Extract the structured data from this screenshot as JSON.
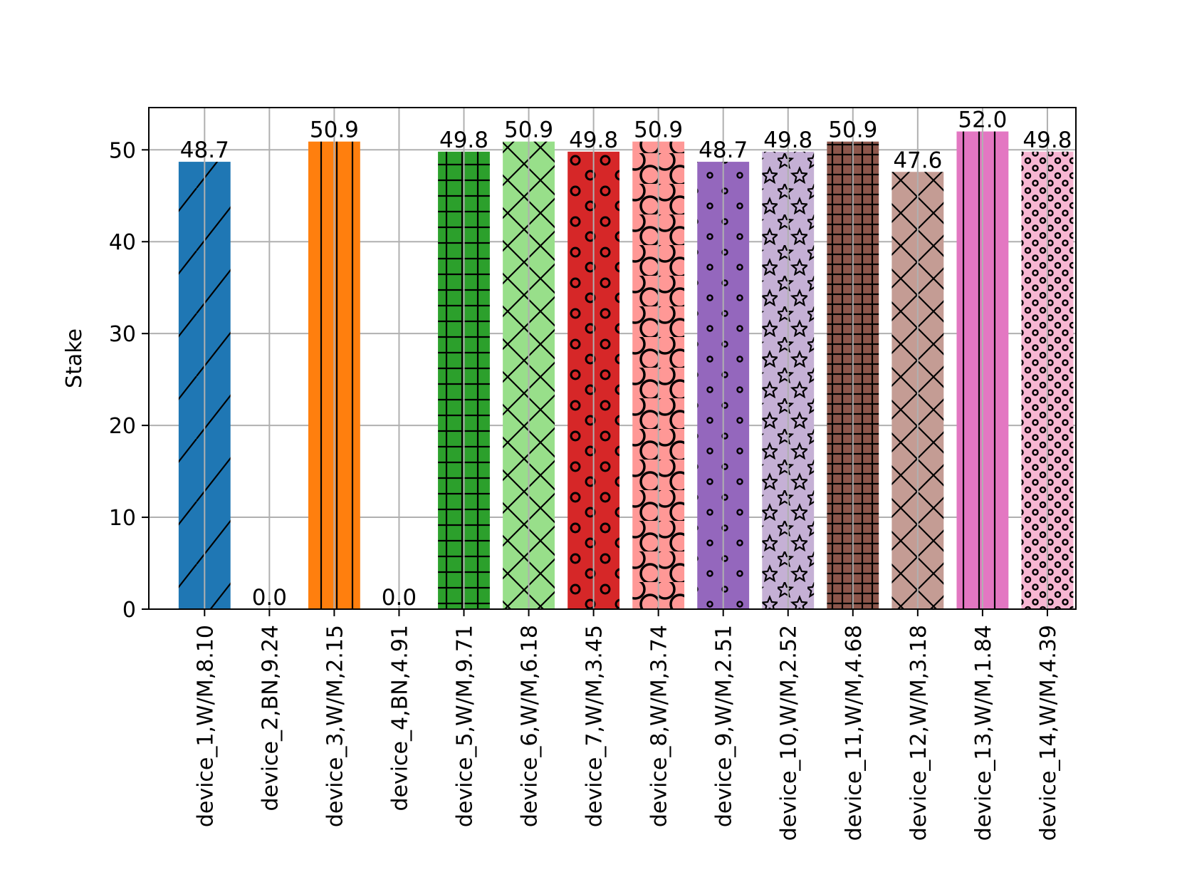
{
  "chart_data": {
    "type": "bar",
    "title": "",
    "xlabel": "",
    "ylabel": "Stake",
    "ylim": [
      0,
      54.6
    ],
    "yticks": [
      0,
      10,
      20,
      30,
      40,
      50
    ],
    "grid": true,
    "categories": [
      "device_1,W/M,8.10",
      "device_2,BN,9.24",
      "device_3,W/M,2.15",
      "device_4,BN,4.91",
      "device_5,W/M,9.71",
      "device_6,W/M,6.18",
      "device_7,W/M,3.45",
      "device_8,W/M,3.74",
      "device_9,W/M,2.51",
      "device_10,W/M,2.52",
      "device_11,W/M,4.68",
      "device_12,W/M,3.18",
      "device_13,W/M,1.84",
      "device_14,W/M,4.39"
    ],
    "values": [
      48.7,
      0.0,
      50.9,
      0.0,
      49.8,
      50.9,
      49.8,
      50.9,
      48.7,
      49.8,
      50.9,
      47.6,
      52.0,
      49.8
    ],
    "data_labels": [
      "48.7",
      "0.0",
      "50.9",
      "0.0",
      "49.8",
      "50.9",
      "49.8",
      "50.9",
      "48.7",
      "49.8",
      "50.9",
      "47.6",
      "52.0",
      "49.8"
    ],
    "colors": [
      "#1f77b4",
      "#aec7e8",
      "#ff7f0e",
      "#ffbb78",
      "#2ca02c",
      "#98df8a",
      "#d62728",
      "#ff9896",
      "#9467bd",
      "#c5b0d5",
      "#8c564b",
      "#c49c94",
      "#e377c2",
      "#f7b6d2"
    ],
    "hatches": [
      "diagonal",
      "diagonal",
      "vertical",
      "vertical",
      "grid",
      "cross",
      "small-circles",
      "large-circles",
      "dots",
      "stars",
      "dense-grid",
      "cross",
      "vertical",
      "dense-circles"
    ]
  }
}
